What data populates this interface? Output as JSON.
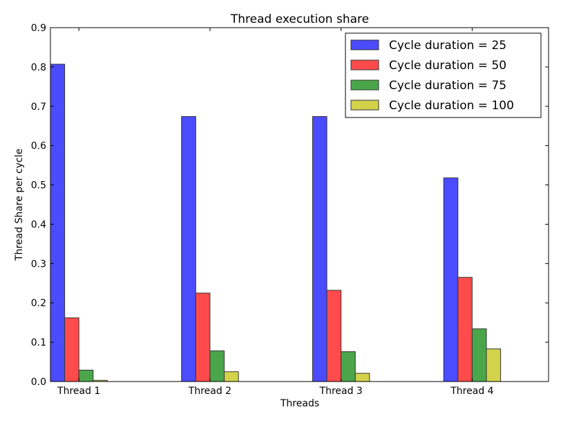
{
  "chart_data": {
    "type": "bar",
    "title": "Thread execution share",
    "xlabel": "Threads",
    "ylabel": "Thread Share per cycle",
    "categories": [
      "Thread 1",
      "Thread 2",
      "Thread 3",
      "Thread 4"
    ],
    "ylim": [
      0,
      0.9
    ],
    "yticks": [
      "0.0",
      "0.1",
      "0.2",
      "0.3",
      "0.4",
      "0.5",
      "0.6",
      "0.7",
      "0.8",
      "0.9"
    ],
    "grid": false,
    "legend_position": "top-right",
    "series": [
      {
        "name": "Cycle duration = 25",
        "color": "#4b4bff",
        "values": [
          0.807,
          0.674,
          0.674,
          0.518
        ]
      },
      {
        "name": "Cycle duration = 50",
        "color": "#ff4b4b",
        "values": [
          0.162,
          0.225,
          0.232,
          0.265
        ]
      },
      {
        "name": "Cycle duration = 75",
        "color": "#4ba64b",
        "values": [
          0.029,
          0.078,
          0.076,
          0.134
        ]
      },
      {
        "name": "Cycle duration = 100",
        "color": "#d2d24b",
        "values": [
          0.003,
          0.025,
          0.021,
          0.083
        ]
      }
    ]
  }
}
